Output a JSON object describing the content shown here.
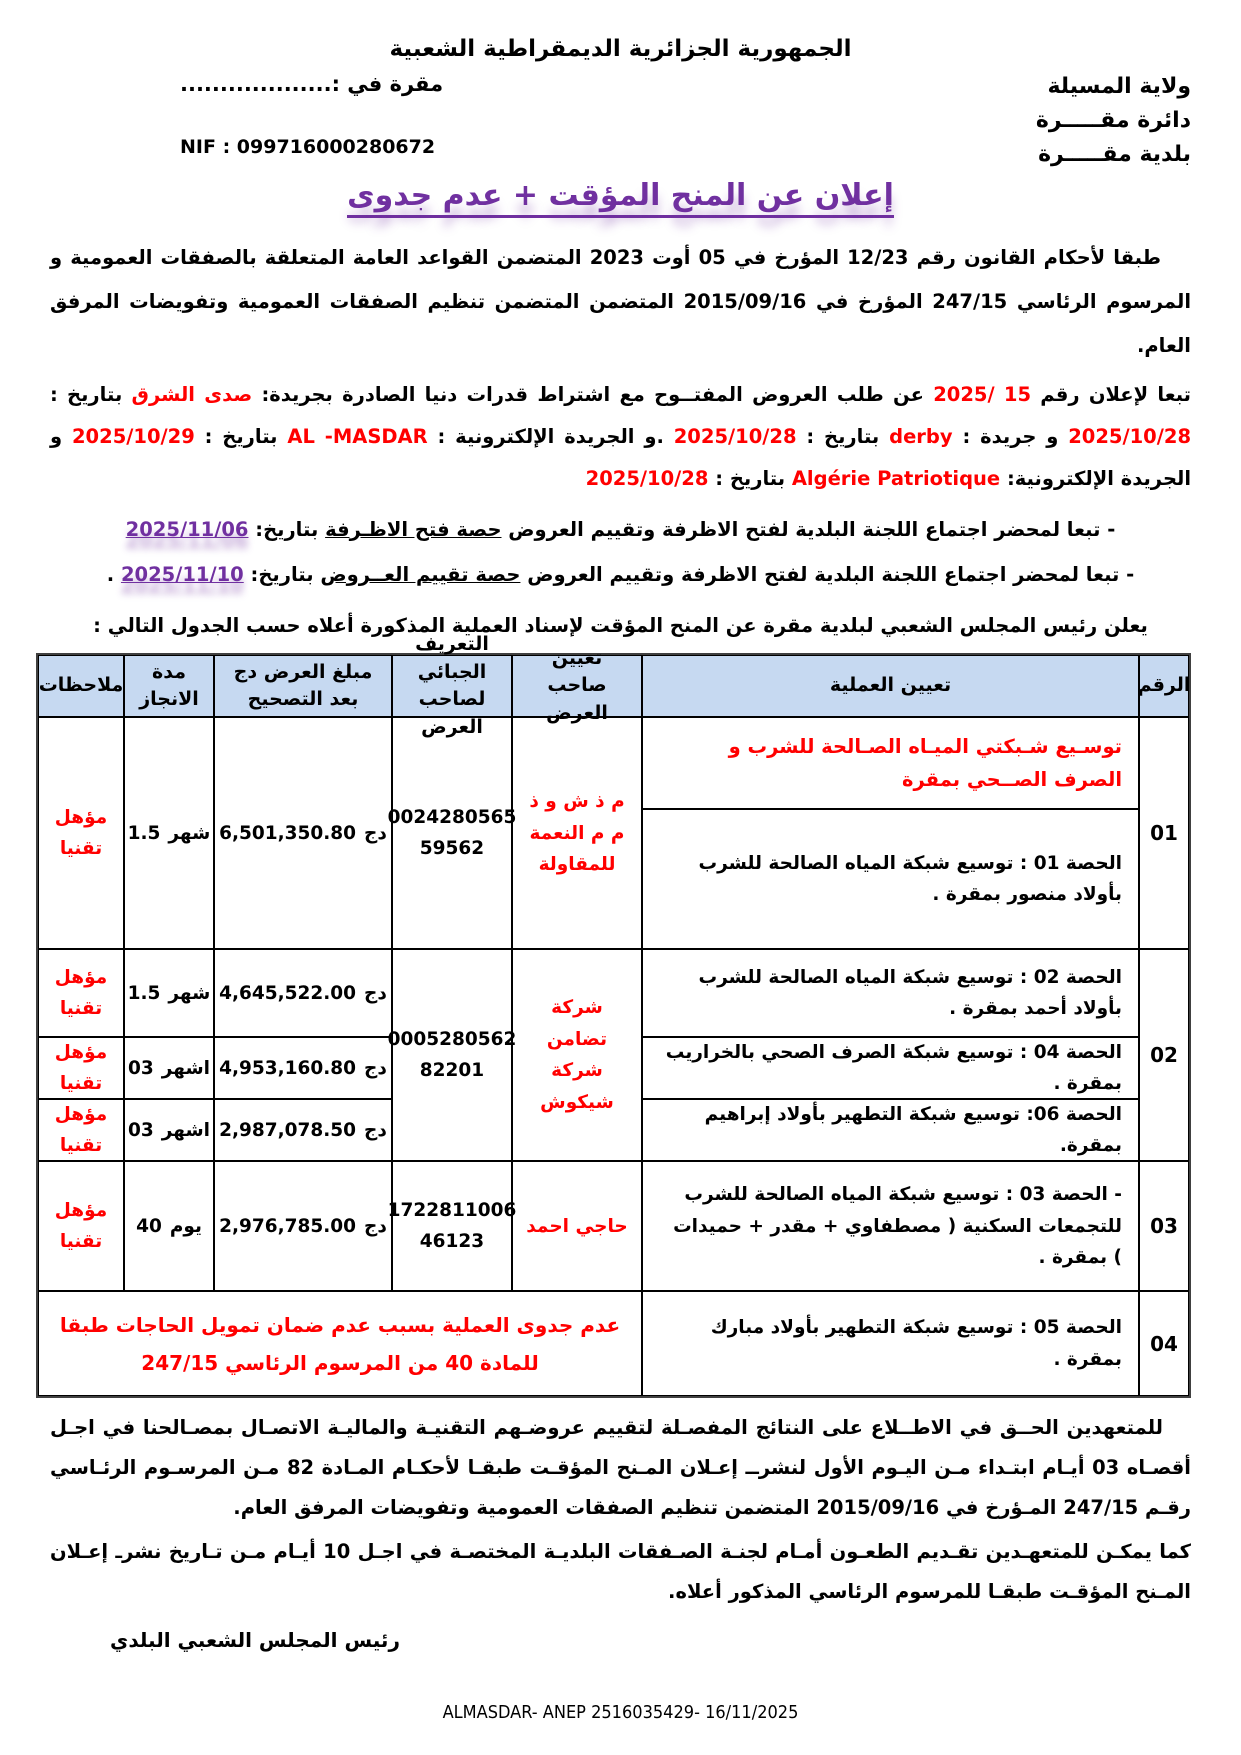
{
  "colors": {
    "accent_purple": "#7030a0",
    "accent_red": "#ff0000",
    "table_header_bg": "#c6d9f1"
  },
  "header": {
    "republic": "الجمهورية الجزائرية الديمقراطية الشعبية",
    "wilaya": "ولاية المسيلة",
    "daira": "دائرة مقـــــرة",
    "commune": "بلدية مقـــــرة",
    "place_date": "مقرة في :...................",
    "nif": "NIF : 099716000280672",
    "title": "إعلان عن المنح المؤقت + عدم جدوى"
  },
  "intro": {
    "legal": "طبقا لأحكام القانون رقم 12/23 المؤرخ في 05 أوت 2023 المتضمن القواعد العامة المتعلقة بالصفقات العمومية و المرسوم الرئاسي 247/15 المؤرخ في 2015/09/16 المتضمن المتضمن تنظيم الصفقات العمومية وتفويضات المرفق العام.",
    "news": {
      "s1": "تبعا لإعلان رقم",
      "s2": "15 /2025",
      "s3": "عن طلب العروض المفتــوح مع اشتراط قدرات دنيا الصادرة بجريدة:",
      "s4": "صدى الشرق",
      "s5": "بتاريخ :",
      "s6": "2025/10/28",
      "s7": "و جريدة :",
      "s8": "derby",
      "s9": "بتاريخ :",
      "s10": "2025/10/28",
      "s11": ".و الجريدة الإلكترونية :",
      "s12": "AL -MASDAR",
      "s13": "بتاريخ :",
      "s14": "2025/10/29",
      "s15": "و الجريدة الإلكترونية:",
      "s16": "Algérie Patriotique",
      "s17": "بتاريخ :",
      "s18": "2025/10/28"
    },
    "minutes1": {
      "pre": "- تبعا لمحضر اجتماع اللجنة البلدية لفتح الاظرفة وتقييم العروض",
      "underlined": "حصة فتح الاظـرفة",
      "label": "بتاريخ:",
      "date": "2025/11/06"
    },
    "minutes2": {
      "pre": "- تبعا لمحضر اجتماع اللجنة البلدية لفتح الاظرفة وتقييم العروض",
      "underlined": "حصة تقييم العــروض",
      "label": "بتاريخ:",
      "date": "2025/11/10",
      "suffix": "."
    },
    "announce": "يعلن رئيس المجلس الشعبي لبلدية مقرة عن المنح المؤقت لإسناد العملية  المذكورة أعلاه حسب الجدول التالي :"
  },
  "table": {
    "headers": {
      "no": "الرقم",
      "operation": "تعيين العملية",
      "bidder": "تعيين صاحب العرض",
      "tax_id": "التعريف الجبائي لصاحب العرض",
      "amount": "مبلغ العرض  دج بعد التصحيح",
      "duration": "مدة الانجاز",
      "notes": "ملاحظات"
    },
    "currency": "دج",
    "rows": {
      "r1": {
        "no": "01",
        "op_main": "توسـيع شـبكتي الميـاه الصـالحة للشرب و الصرف الصــحي بمقرة",
        "lot": "الحصة 01 : توسيع شبكة المياه الصالحة للشرب بأولاد منصور بمقرة .",
        "bidder": "م ذ ش و ذ م م النعمة للمقاولة",
        "tax_line1": "0024280565",
        "tax_line2": "59562",
        "amount": "6,501,350.80",
        "duration_value": "1.5",
        "duration_unit": "شهر",
        "note": "مؤهل تقنيا"
      },
      "r2": {
        "no": "02",
        "bidder": "شركة تضامن شركة شيكوش",
        "tax_line1": "0005280562",
        "tax_line2": "82201",
        "lots": [
          {
            "op": "الحصة 02 : توسيع شبكة المياه الصالحة للشرب بأولاد أحمد بمقرة .",
            "amount": "4,645,522.00",
            "duration_value": "1.5",
            "duration_unit": "شهر",
            "note": "مؤهل تقنيا"
          },
          {
            "op": "الحصة 04 : توسيع شبكة الصرف الصحي بالخراريب بمقرة .",
            "amount": "4,953,160.80",
            "duration_value": "03",
            "duration_unit": "اشهر",
            "note": "مؤهل تقنيا"
          },
          {
            "op": "الحصة 06: توسيع شبكة التطهير بأولاد إبراهيم بمقرة.",
            "amount": "2,987,078.50",
            "duration_value": "03",
            "duration_unit": "اشهر",
            "note": "مؤهل تقنيا"
          }
        ]
      },
      "r3": {
        "no": "03",
        "op": "- الحصة 03 : توسيع شبكة المياه الصالحة للشرب للتجمعات السكنية ( مصطفاوي + مقدر + حميدات ) بمقرة .",
        "bidder": "حاجي احمد",
        "tax_line1": "1722811006",
        "tax_line2": "46123",
        "amount": "2,976,785.00",
        "duration_value": "40",
        "duration_unit": "يوم",
        "note": "مؤهل تقنيا"
      },
      "r4": {
        "no": "04",
        "op": "الحصة 05 : توسيع شبكة التطهير بأولاد مبارك بمقرة .",
        "cancel": "عدم جدوى العملية  بسبب عدم ضمان تمويل الحاجات طبقا للمادة 40 من المرسوم الرئاسي 247/15"
      }
    }
  },
  "closing": {
    "p1": "للمتعهدين الحــق في الاطــلاع على النتائج المفصـلة لتقييم عروضـهم التقنيـة والماليـة الاتصـال بمصـالحنا في اجـل أقصـاه 03 أيـام ابتـداء مـن اليـوم الأول لنشرــ إعـلان المـنح المؤقـت طبقـا لأحكـام المـادة 82 مـن المرسـوم الرئـاسي رقـم 247/15 المـؤرخ في 2015/09/16 المتضمن تنظيم الصفقات العمومية وتفويضات المرفق العام.",
    "p2": "كما يمكـن للمتعهـدين تقـديم الطعـون أمـام لجنـة الصـفقات البلديـة المختصـة في اجـل 10 أيـام مـن تـاريخ نشرـ إعـلان المـنح المؤقـت طبقـا للمرسوم الرئاسي المذكور أعلاه.",
    "signature": "رئيس المجلس الشعبي البلدي"
  },
  "footer": {
    "anep": "ALMASDAR- ANEP 2516035429- 16/11/2025"
  }
}
